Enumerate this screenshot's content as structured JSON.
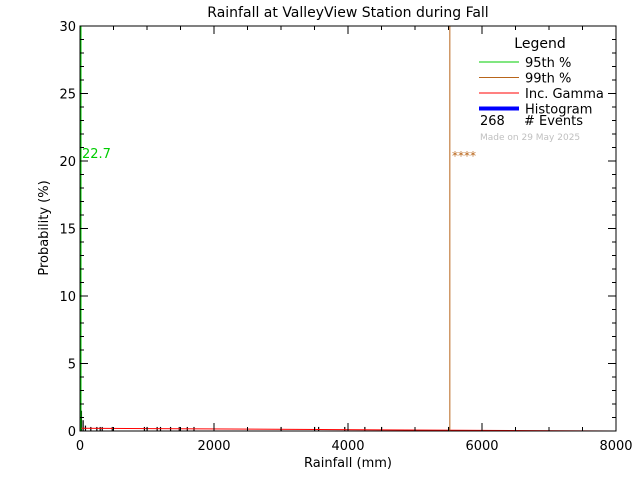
{
  "chart_data": {
    "type": "bar",
    "title": "Rainfall at ValleyView Station during Fall",
    "xlabel": "Rainfall (mm)",
    "ylabel": "Probability (%)",
    "xlim": [
      0,
      8000
    ],
    "ylim": [
      0,
      30
    ],
    "xticks": [
      0,
      2000,
      4000,
      6000,
      8000
    ],
    "yticks": [
      0,
      5,
      10,
      15,
      20,
      25,
      30
    ],
    "grid": false,
    "legend_position": "top-right",
    "legend": {
      "title": "Legend",
      "items": [
        {
          "label": "95th %",
          "color": "#00cc00"
        },
        {
          "label": "99th %",
          "color": "#b8651a"
        },
        {
          "label": "Inc. Gamma",
          "color": "#ff0000"
        },
        {
          "label": "Histogram",
          "color": "#0000ff"
        }
      ],
      "events_count": "268",
      "events_label": "# Events",
      "made_on": "Made on 29 May 2025"
    },
    "percentile_95": {
      "x": 0,
      "label": "22.7",
      "color": "#00cc00"
    },
    "percentile_99": {
      "x": 5520,
      "label": "****",
      "color": "#b8651a"
    },
    "histogram_bars": [
      {
        "x": 5,
        "y": 4.5
      },
      {
        "x": 20,
        "y": 1.5
      },
      {
        "x": 45,
        "y": 0.8
      },
      {
        "x": 80,
        "y": 0.4
      },
      {
        "x": 160,
        "y": 0.3
      },
      {
        "x": 250,
        "y": 0.3
      },
      {
        "x": 300,
        "y": 0.3
      },
      {
        "x": 330,
        "y": 0.3
      },
      {
        "x": 480,
        "y": 0.3
      },
      {
        "x": 960,
        "y": 0.3
      },
      {
        "x": 1000,
        "y": 0.3
      },
      {
        "x": 1150,
        "y": 0.3
      },
      {
        "x": 1200,
        "y": 0.3
      },
      {
        "x": 1350,
        "y": 0.3
      },
      {
        "x": 1480,
        "y": 0.3
      },
      {
        "x": 1600,
        "y": 0.3
      },
      {
        "x": 1700,
        "y": 0.3
      },
      {
        "x": 3000,
        "y": 0.3
      },
      {
        "x": 3500,
        "y": 0.3
      },
      {
        "x": 3560,
        "y": 0.3
      },
      {
        "x": 3950,
        "y": 0.3
      },
      {
        "x": 4250,
        "y": 0.3
      },
      {
        "x": 4500,
        "y": 0.3
      },
      {
        "x": 5500,
        "y": 0.3
      }
    ],
    "gamma_curve": [
      [
        0,
        0.2
      ],
      [
        8000,
        0.0
      ]
    ]
  }
}
